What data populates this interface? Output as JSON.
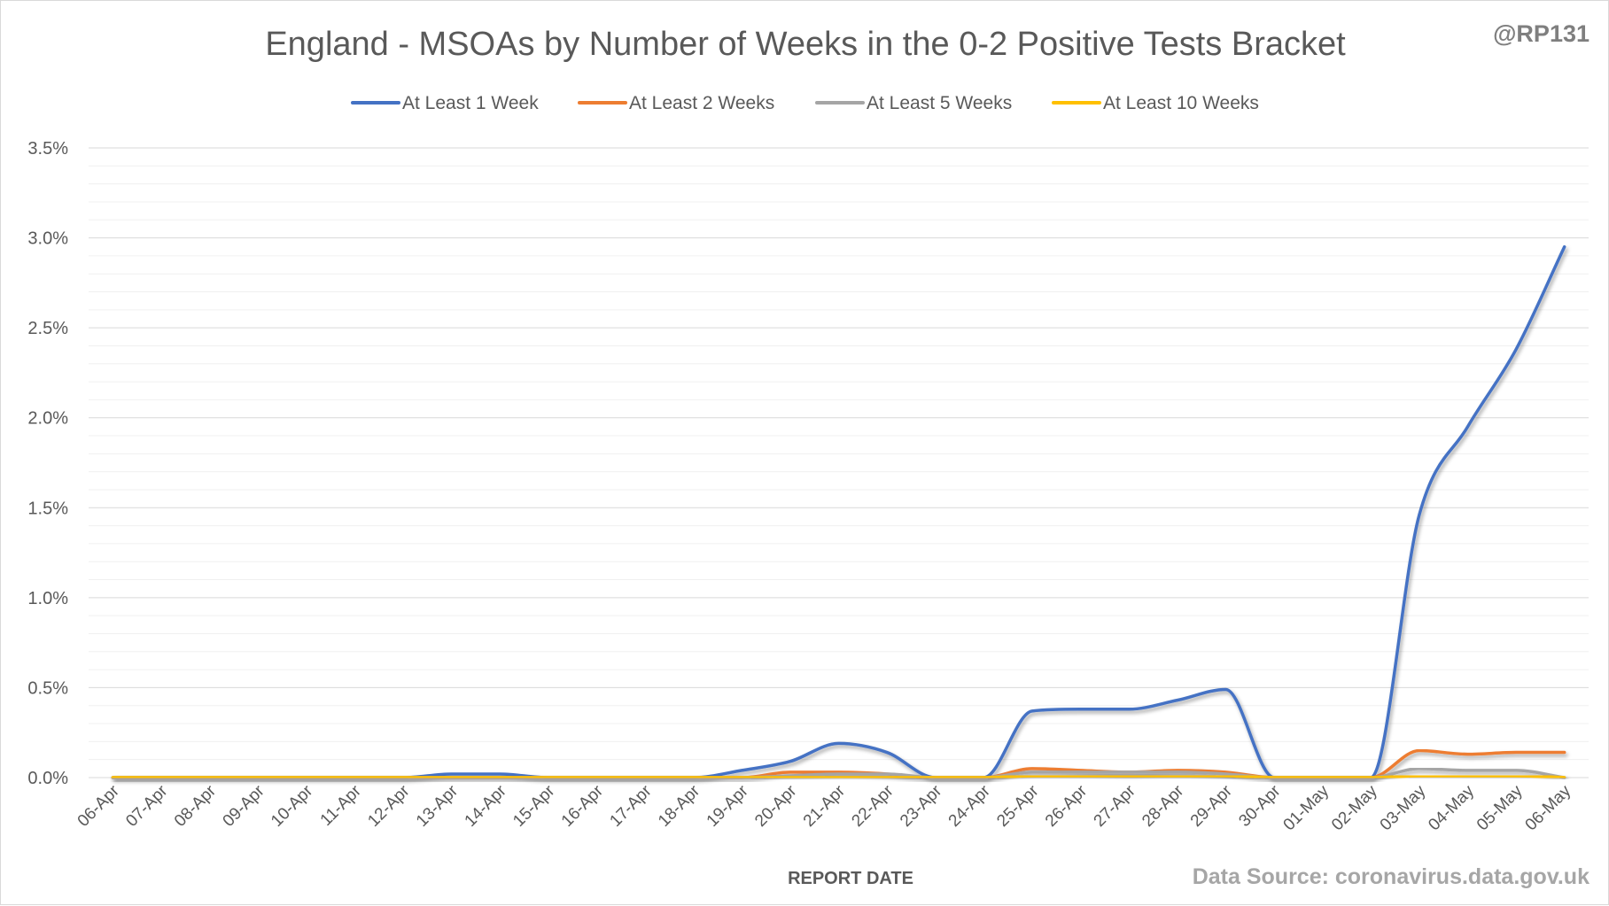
{
  "chart_data": {
    "type": "line",
    "title": "England - MSOAs by Number of Weeks in the 0-2 Positive Tests Bracket",
    "handle": "@RP131",
    "source": "Data Source: coronavirus.data.gov.uk",
    "xlabel": "REPORT DATE",
    "ylabel": "",
    "ylim": [
      0,
      0.035
    ],
    "y_ticks": [
      "0.0%",
      "0.5%",
      "1.0%",
      "1.5%",
      "2.0%",
      "2.5%",
      "3.0%",
      "3.5%"
    ],
    "y_tick_values": [
      0,
      0.005,
      0.01,
      0.015,
      0.02,
      0.025,
      0.03,
      0.035
    ],
    "grid": true,
    "legend_position": "top",
    "categories": [
      "06-Apr",
      "07-Apr",
      "08-Apr",
      "09-Apr",
      "10-Apr",
      "11-Apr",
      "12-Apr",
      "13-Apr",
      "14-Apr",
      "15-Apr",
      "16-Apr",
      "17-Apr",
      "18-Apr",
      "19-Apr",
      "20-Apr",
      "21-Apr",
      "22-Apr",
      "23-Apr",
      "24-Apr",
      "25-Apr",
      "26-Apr",
      "27-Apr",
      "28-Apr",
      "29-Apr",
      "30-Apr",
      "01-May",
      "02-May",
      "03-May",
      "04-May",
      "05-May",
      "06-May"
    ],
    "series": [
      {
        "name": "At Least 1 Week",
        "color": "#4472c4",
        "values": [
          0,
          0,
          0,
          0,
          0,
          0,
          0,
          0.0002,
          0.0002,
          0,
          0,
          0,
          0,
          0.0004,
          0.0009,
          0.0019,
          0.0014,
          0,
          0,
          0.0037,
          0.0038,
          0.0038,
          0.0043,
          0.0049,
          0,
          0,
          0,
          0.0146,
          0.0195,
          0.0238,
          0.0295
        ]
      },
      {
        "name": "At Least 2 Weeks",
        "color": "#ed7d31",
        "values": [
          0,
          0,
          0,
          0,
          0,
          0,
          0,
          0,
          0,
          0,
          0,
          0,
          0,
          0,
          0.0003,
          0.0003,
          0.0002,
          0,
          0,
          0.0005,
          0.0004,
          0.0003,
          0.0004,
          0.0003,
          0,
          0,
          0,
          0.0015,
          0.0013,
          0.0014,
          0.0014
        ]
      },
      {
        "name": "At Least 5 Weeks",
        "color": "#a5a5a5",
        "values": [
          0,
          0,
          0,
          0,
          0,
          0,
          0,
          0,
          0,
          0,
          0,
          0,
          0,
          0,
          0.0001,
          0.0002,
          0.0002,
          0,
          0,
          0.0003,
          0.0003,
          0.0003,
          0.0003,
          0.0002,
          0,
          0,
          0,
          0.0005,
          0.0004,
          0.0004,
          0
        ]
      },
      {
        "name": "At Least 10 Weeks",
        "color": "#ffc000",
        "values": [
          0,
          0,
          0,
          0,
          0,
          0,
          0,
          0,
          0,
          0,
          0,
          0,
          0,
          0,
          0,
          0,
          0,
          0,
          0,
          0.0001,
          0.0001,
          0.0001,
          0.0001,
          0.0001,
          0,
          0,
          0,
          0.0001,
          0.0001,
          0.0001,
          0
        ]
      }
    ]
  }
}
